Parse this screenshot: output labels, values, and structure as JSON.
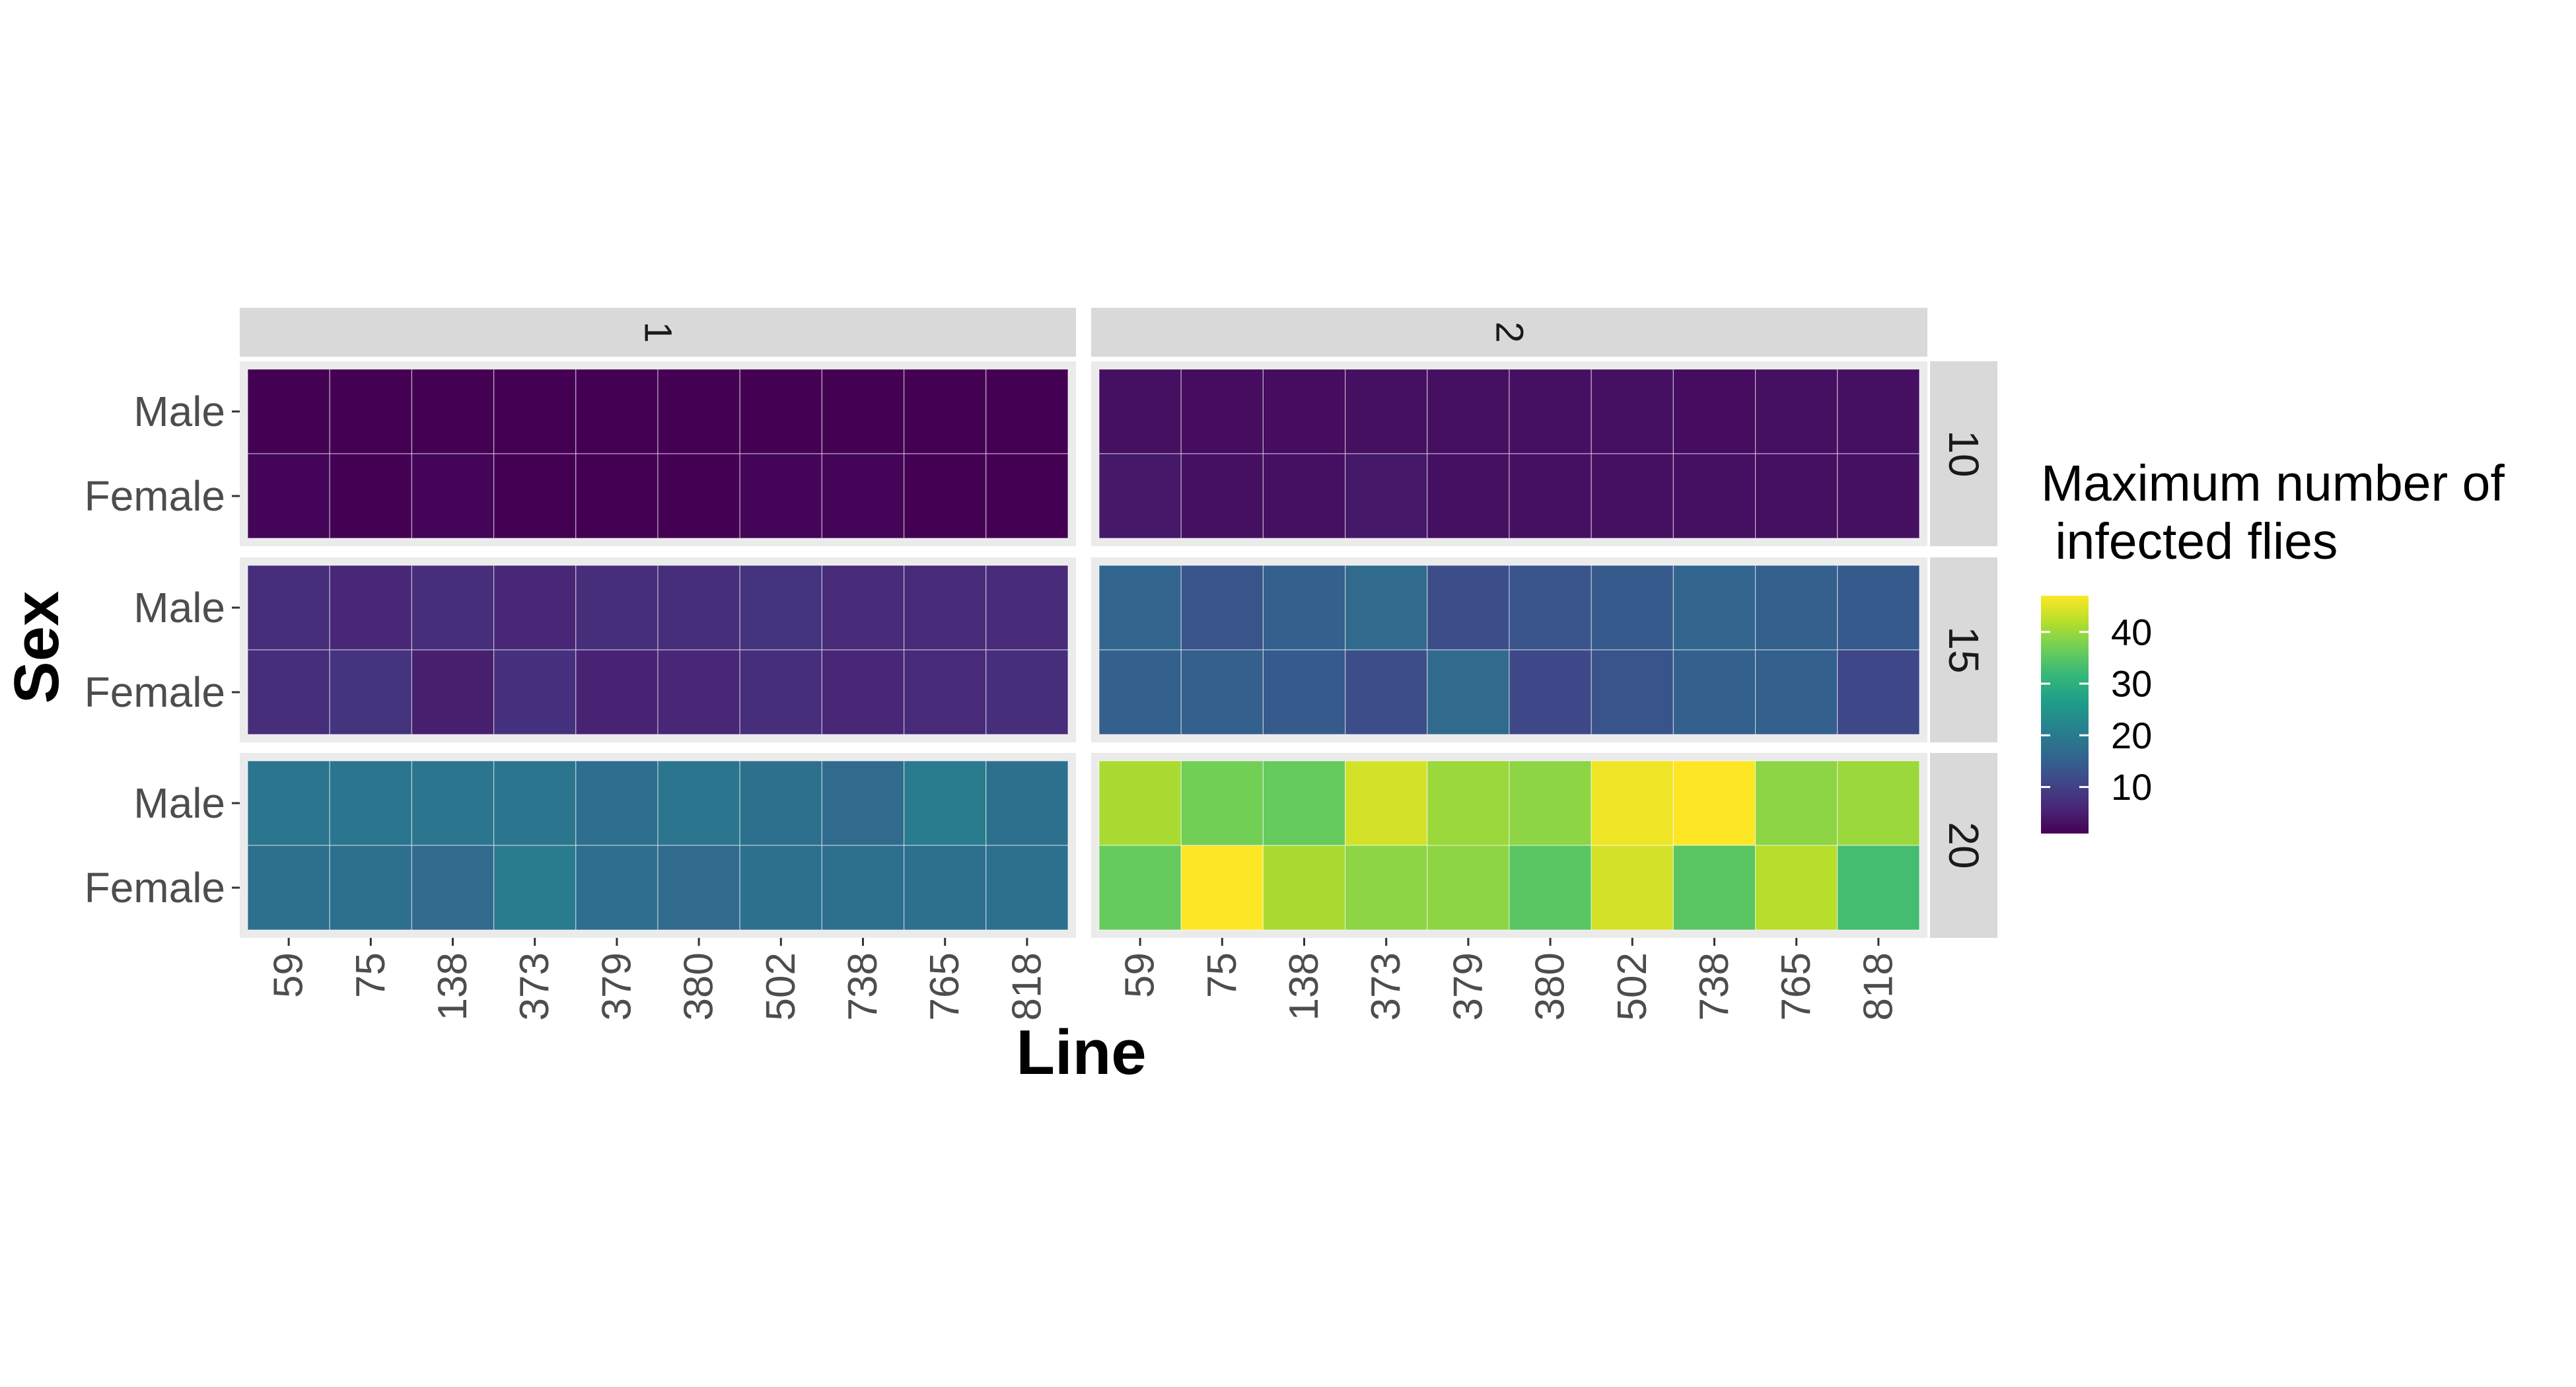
{
  "chart_data": {
    "type": "heatmap",
    "title": "",
    "xlabel": "Line",
    "ylabel": "Sex",
    "x_categories": [
      "59",
      "75",
      "138",
      "373",
      "379",
      "380",
      "502",
      "738",
      "765",
      "818"
    ],
    "y_categories": [
      "Male",
      "Female"
    ],
    "facet_cols": [
      "1",
      "2"
    ],
    "facet_rows": [
      "10",
      "15",
      "20"
    ],
    "legend": {
      "title_lines": [
        "Maximum number of",
        " infected flies"
      ],
      "ticks": [
        10,
        20,
        30,
        40
      ],
      "ticks_text": [
        "10",
        "20",
        "30",
        "40"
      ],
      "range": [
        1,
        47
      ],
      "placement": "right",
      "colormap": "viridis"
    },
    "panels": [
      {
        "col": "1",
        "row": "10",
        "values": {
          "Male": [
            1,
            1,
            1,
            1,
            1,
            1,
            1,
            1,
            1,
            1
          ],
          "Female": [
            1.5,
            1,
            1.5,
            0.8,
            0.5,
            0.5,
            1.5,
            1.5,
            1,
            1
          ]
        }
      },
      {
        "col": "2",
        "row": "10",
        "values": {
          "Male": [
            3,
            2.5,
            2.5,
            3,
            3,
            3,
            3,
            2.5,
            3,
            3
          ],
          "Female": [
            4,
            3,
            3,
            4,
            3,
            3,
            3,
            3,
            3,
            3
          ]
        }
      },
      {
        "col": "1",
        "row": "15",
        "values": {
          "Male": [
            7,
            6,
            7,
            6,
            7,
            7,
            8,
            6.5,
            6.5,
            6.5
          ],
          "Female": [
            7,
            8,
            5,
            7.5,
            5.5,
            6,
            7,
            6,
            6.5,
            7
          ]
        }
      },
      {
        "col": "2",
        "row": "15",
        "values": {
          "Male": [
            16,
            13,
            15,
            17,
            12,
            13,
            14,
            16,
            15,
            14
          ],
          "Female": [
            15,
            15,
            14,
            12,
            17,
            11,
            13,
            15,
            15,
            11
          ]
        }
      },
      {
        "col": "1",
        "row": "20",
        "values": {
          "Male": [
            19,
            19,
            19,
            19,
            17.5,
            19,
            18,
            17,
            20,
            18
          ],
          "Female": [
            18,
            18,
            17,
            20,
            17.5,
            17,
            18,
            18,
            18,
            18
          ]
        }
      },
      {
        "col": "2",
        "row": "20",
        "values": {
          "Male": [
            41,
            37,
            36,
            44,
            40,
            39,
            46,
            47,
            39,
            40
          ],
          "Female": [
            36,
            47,
            41,
            39,
            39,
            35,
            44,
            35,
            42,
            33
          ]
        }
      }
    ]
  }
}
